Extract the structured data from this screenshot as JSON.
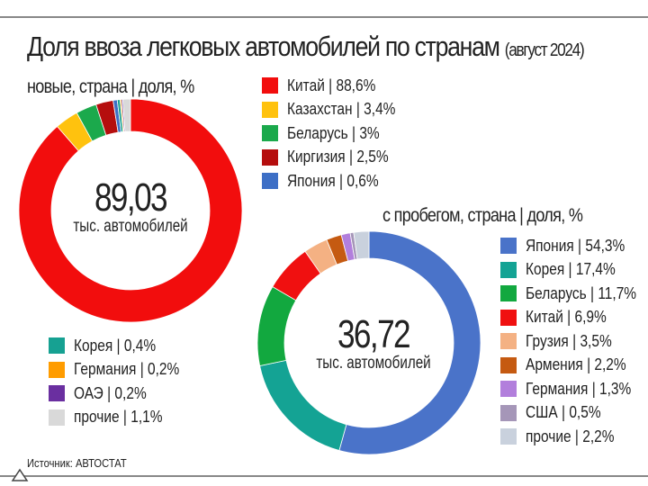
{
  "title": "Доля ввоза легковых автомобилей по странам",
  "period": "(август 2024)",
  "source": "Источник: АВТОСТАТ",
  "chart_data": [
    {
      "type": "pie",
      "subtitle": "новые, страна | доля, %",
      "total": "89,03",
      "total_unit": "тыс. автомобилей",
      "categories": [
        "Китай",
        "Казахстан",
        "Беларусь",
        "Киргизия",
        "Япония",
        "Корея",
        "Германия",
        "ОАЭ",
        "прочие"
      ],
      "values": [
        88.6,
        3.4,
        3,
        2.5,
        0.6,
        0.4,
        0.2,
        0.2,
        1.1
      ],
      "labels": [
        "Китай | 88,6%",
        "Казахстан | 3,4%",
        "Беларусь | 3%",
        "Киргизия | 2,5%",
        "Япония | 0,6%",
        "Корея | 0,4%",
        "Германия | 0,2%",
        "ОАЭ | 0,2%",
        "прочие | 1,1%"
      ],
      "colors": [
        "#f20d0d",
        "#ffc20e",
        "#1ba94c",
        "#b50e0e",
        "#3d6fc6",
        "#16a192",
        "#ff9c00",
        "#6a2fa0",
        "#d9d9d9"
      ]
    },
    {
      "type": "pie",
      "subtitle": "с пробегом, страна | доля, %",
      "total": "36,72",
      "total_unit": "тыс. автомобилей",
      "categories": [
        "Япония",
        "Корея",
        "Беларусь",
        "Китай",
        "Грузия",
        "Армения",
        "Германия",
        "США",
        "прочие"
      ],
      "values": [
        54.3,
        17.4,
        11.7,
        6.9,
        3.5,
        2.2,
        1.3,
        0.5,
        2.2
      ],
      "labels": [
        "Япония | 54,3%",
        "Корея | 17,4%",
        "Беларусь | 11,7%",
        "Китай | 6,9%",
        "Грузия | 3,5%",
        "Армения | 2,2%",
        "Германия | 1,3%",
        "США | 0,5%",
        "прочие | 2,2%"
      ],
      "colors": [
        "#4a73c9",
        "#14a394",
        "#12a83f",
        "#f01010",
        "#f4b183",
        "#c55a11",
        "#b27fdc",
        "#a596b8",
        "#c9d1dd"
      ]
    }
  ]
}
